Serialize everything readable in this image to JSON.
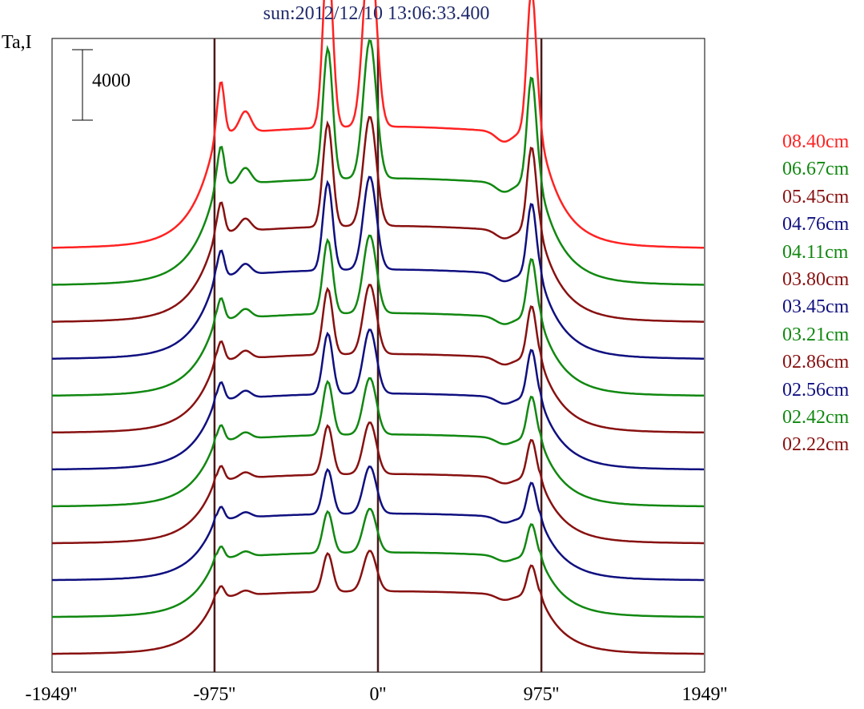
{
  "chart_data": {
    "type": "line",
    "title": "sun:2012/12/10 13:06:33.400",
    "ylabel": "Ta,I",
    "scale_bar_label": "4000",
    "scale_bar_value": 4000,
    "x_ticks": [
      {
        "label": "-1949''",
        "value": -1949
      },
      {
        "label": "-975''",
        "value": -975
      },
      {
        "label": "0''",
        "value": 0
      },
      {
        "label": "975''",
        "value": 975
      },
      {
        "label": "1949''",
        "value": 1949
      }
    ],
    "xlim": [
      -1949,
      1949
    ],
    "vertical_lines": [
      -975,
      0,
      975
    ],
    "grid": false,
    "legend_position": "right",
    "series": [
      {
        "name": "08.40cm",
        "color": "#ff2222",
        "peak_scale": 1.0
      },
      {
        "name": "06.67cm",
        "color": "#118811",
        "peak_scale": 0.78
      },
      {
        "name": "05.45cm",
        "color": "#881111",
        "peak_scale": 0.62
      },
      {
        "name": "04.76cm",
        "color": "#101080",
        "peak_scale": 0.52
      },
      {
        "name": "04.11cm",
        "color": "#118811",
        "peak_scale": 0.42
      },
      {
        "name": "03.80cm",
        "color": "#881111",
        "peak_scale": 0.36
      },
      {
        "name": "03.45cm",
        "color": "#101080",
        "peak_scale": 0.32
      },
      {
        "name": "03.21cm",
        "color": "#118811",
        "peak_scale": 0.26
      },
      {
        "name": "02.86cm",
        "color": "#881111",
        "peak_scale": 0.22
      },
      {
        "name": "02.56cm",
        "color": "#101080",
        "peak_scale": 0.18
      },
      {
        "name": "02.42cm",
        "color": "#118811",
        "peak_scale": 0.15
      },
      {
        "name": "02.22cm",
        "color": "#881111",
        "peak_scale": 0.12
      }
    ]
  }
}
